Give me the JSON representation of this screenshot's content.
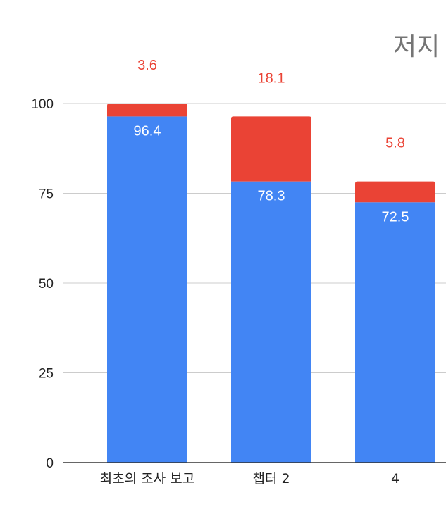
{
  "chart_data": {
    "type": "bar",
    "stacked": true,
    "categories": [
      "최초의 조사 보고",
      "챕터 2",
      "4"
    ],
    "series": [
      {
        "name": "",
        "color": "#4285f4",
        "values": [
          96.4,
          78.3,
          72.5
        ]
      },
      {
        "name": "저지",
        "color": "#ea4335",
        "values": [
          3.6,
          18.1,
          5.8
        ]
      }
    ],
    "data_labels": [
      [
        "96.4",
        "78.3",
        "72.5"
      ],
      [
        "3.6",
        "18.1",
        "5.8"
      ]
    ],
    "yticks": [
      0,
      25,
      50,
      75,
      100
    ],
    "ylim": [
      0,
      100
    ],
    "grid": true,
    "legend_position": "top-right",
    "title": "",
    "xlabel": "",
    "ylabel": ""
  }
}
